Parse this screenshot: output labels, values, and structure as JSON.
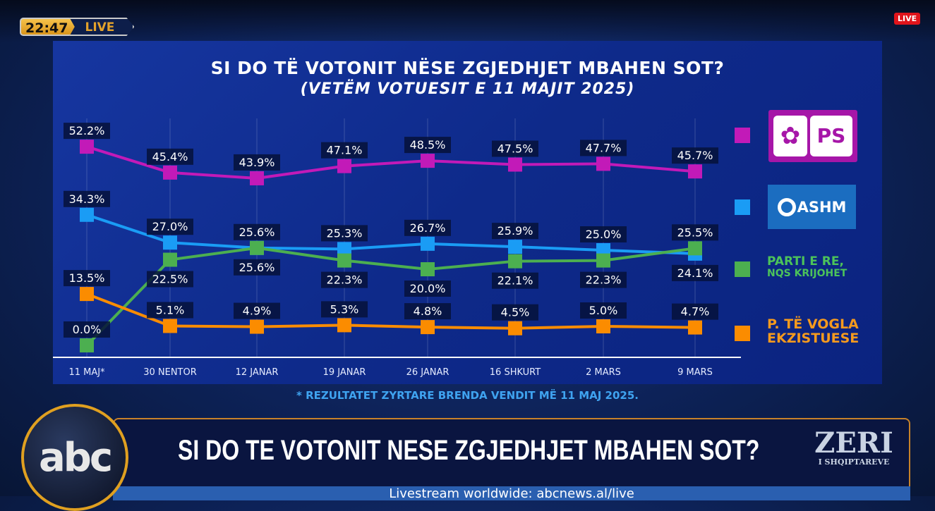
{
  "overlay": {
    "time": "22:47",
    "live_tag": "LIVE",
    "live_badge": "LIVE"
  },
  "chart_data": {
    "type": "line",
    "title": "SI DO TË VOTONIT NËSE ZGJEDHJET MBAHEN SOT?",
    "subtitle": "(VETËM VOTUESIT E 11 MAJIT 2025)",
    "categories": [
      "11 MAJ*",
      "30 NENTOR",
      "12 JANAR",
      "19 JANAR",
      "26 JANAR",
      "16 SHKURT",
      "2 MARS",
      "9 MARS"
    ],
    "series": [
      {
        "name": "PS",
        "color": "#c21ab8",
        "values": [
          52.2,
          45.4,
          43.9,
          47.1,
          48.5,
          47.5,
          47.7,
          45.7
        ]
      },
      {
        "name": "DASHM",
        "color": "#1a9cf5",
        "values": [
          34.3,
          27.0,
          25.6,
          25.3,
          26.7,
          25.9,
          25.0,
          24.1
        ]
      },
      {
        "name": "PARTI E RE, NQS KRIJOHET",
        "color": "#4caf50",
        "values": [
          0.0,
          22.5,
          25.6,
          22.3,
          20.0,
          22.1,
          22.3,
          25.5
        ]
      },
      {
        "name": "P. TË VOGLA EKZISTUESE",
        "color": "#fb8c00",
        "values": [
          13.5,
          5.1,
          4.9,
          5.3,
          4.8,
          4.5,
          5.0,
          4.7
        ]
      }
    ],
    "ylim": [
      0,
      55
    ],
    "legend": "right",
    "grid": "vertical"
  },
  "legend": {
    "parti_line1": "PARTI E RE,",
    "parti_line2": "NQS KRIJOHET",
    "vogla_line1": "P. TË VOGLA",
    "vogla_line2": "EKZISTUESE",
    "ps_logo": "PS",
    "dashm_logo": "ASHM"
  },
  "footnote": "* REZULTATET ZYRTARE BRENDA VENDIT MË 11 MAJ 2025.",
  "banner": {
    "headline": "SI DO TE VOTONIT NESE ZGJEDHJET MBAHEN SOT?",
    "brand": "ZERI",
    "brand_sub": "I SHQIPTAREVE",
    "channel": "abc",
    "stream": "Livestream worldwide: abcnews.al/live"
  }
}
